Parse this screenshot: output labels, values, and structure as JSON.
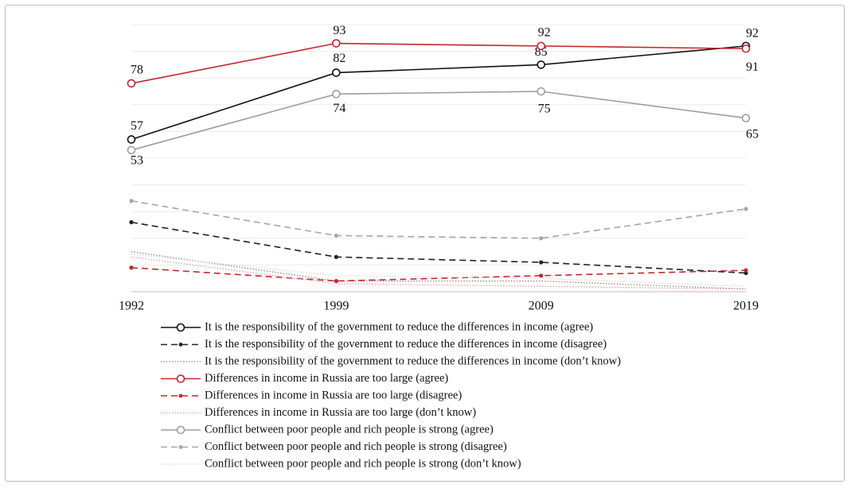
{
  "chart_data": {
    "type": "line",
    "categories": [
      "1992",
      "1999",
      "2009",
      "2019"
    ],
    "ylim": [
      0,
      100
    ],
    "yticks": [
      0,
      10,
      20,
      30,
      40,
      50,
      60,
      70,
      80,
      90,
      100
    ],
    "grid": true,
    "series": [
      {
        "name": "It is the responsibility of the government to reduce the differences in income (agree)",
        "color": "#111111",
        "dash": "solid",
        "marker": "open-circle",
        "show_values": true,
        "values": [
          57,
          82,
          85,
          92
        ]
      },
      {
        "name": "It is the responsibility of the government to reduce the differences in income (disagree)",
        "color": "#222222",
        "dash": "dashed",
        "marker": "dot",
        "values": [
          26,
          13,
          11,
          7
        ]
      },
      {
        "name": "It is the responsibility of the government to reduce the differences in income (don’t know)",
        "color": "#8a8a8a",
        "dash": "dotted",
        "marker": "none",
        "values": [
          15,
          4,
          4,
          1
        ]
      },
      {
        "name": "Differences in income in Russia are too large (agree)",
        "color": "#c3272d",
        "dash": "solid",
        "marker": "open-circle",
        "show_values": true,
        "values": [
          78,
          93,
          92,
          91
        ]
      },
      {
        "name": "Differences in income in Russia are too large (disagree)",
        "color": "#c3272d",
        "dash": "dashed",
        "marker": "dot",
        "values": [
          9,
          4,
          6,
          8
        ]
      },
      {
        "name": "Differences in income in Russia are too large (don’t know)",
        "color": "#e6a0a3",
        "dash": "dotted",
        "marker": "none",
        "values": [
          13,
          3,
          2,
          1
        ]
      },
      {
        "name": "Conflict between poor people and rich people is strong (agree)",
        "color": "#9e9e9e",
        "dash": "solid",
        "marker": "open-circle",
        "show_values": true,
        "values": [
          53,
          74,
          75,
          65
        ]
      },
      {
        "name": "Conflict between poor people and rich people is strong (disagree)",
        "color": "#a6a6a6",
        "dash": "dashed",
        "marker": "dot",
        "values": [
          34,
          21,
          20,
          31
        ]
      },
      {
        "name": "Conflict between poor people and rich people is strong (don’t know)",
        "color": "#d6d6d6",
        "dash": "dotted",
        "marker": "none",
        "values": [
          14,
          6,
          5,
          2
        ]
      }
    ]
  }
}
